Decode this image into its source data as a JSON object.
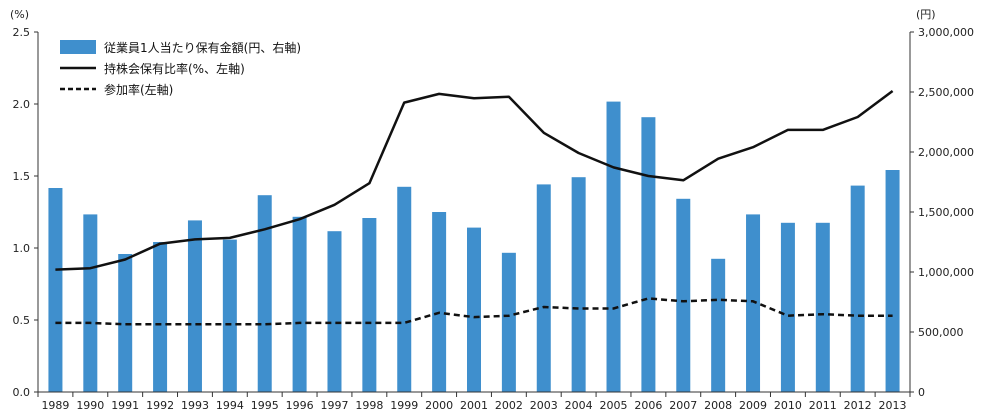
{
  "chart_data": {
    "type": "bar",
    "left_axis_unit": "(%)",
    "right_axis_unit": "(円)",
    "left_ylim": [
      0,
      2.5
    ],
    "right_ylim": [
      0,
      3000000
    ],
    "left_ticks": [
      "0.0",
      "0.5",
      "1.0",
      "1.5",
      "2.0",
      "2.5"
    ],
    "right_ticks": [
      "0",
      "500,000",
      "1,000,000",
      "1,500,000",
      "2,000,000",
      "2,500,000",
      "3,000,000"
    ],
    "categories": [
      "1989",
      "1990",
      "1991",
      "1992",
      "1993",
      "1994",
      "1995",
      "1996",
      "1997",
      "1998",
      "1999",
      "2000",
      "2001",
      "2002",
      "2003",
      "2004",
      "2005",
      "2006",
      "2007",
      "2008",
      "2009",
      "2010",
      "2011",
      "2012",
      "2013"
    ],
    "series": [
      {
        "name": "従業員1人当たり保有金額(円、右軸)",
        "type": "bar",
        "axis": "right",
        "color": "#3f8fcd",
        "values": [
          1700000,
          1480000,
          1150000,
          1250000,
          1430000,
          1270000,
          1640000,
          1460000,
          1340000,
          1450000,
          1710000,
          1500000,
          1370000,
          1160000,
          1730000,
          1790000,
          2420000,
          2290000,
          1610000,
          1110000,
          1480000,
          1410000,
          1410000,
          1720000,
          1850000
        ]
      },
      {
        "name": "持株会保有比率(%、左軸)",
        "type": "line",
        "axis": "left",
        "style": "solid",
        "color": "#111111",
        "values": [
          0.85,
          0.86,
          0.92,
          1.03,
          1.06,
          1.07,
          1.13,
          1.2,
          1.3,
          1.45,
          2.01,
          2.07,
          2.04,
          2.05,
          1.8,
          1.66,
          1.56,
          1.5,
          1.47,
          1.62,
          1.7,
          1.82,
          1.82,
          1.91,
          2.09
        ]
      },
      {
        "name": "参加率(左軸)",
        "type": "line",
        "axis": "left",
        "style": "dashed",
        "color": "#111111",
        "values": [
          0.48,
          0.48,
          0.47,
          0.47,
          0.47,
          0.47,
          0.47,
          0.48,
          0.48,
          0.48,
          0.48,
          0.55,
          0.52,
          0.53,
          0.59,
          0.58,
          0.58,
          0.65,
          0.63,
          0.64,
          0.63,
          0.53,
          0.54,
          0.53,
          0.53
        ]
      }
    ],
    "legend_position": "top-left",
    "grid": false
  }
}
